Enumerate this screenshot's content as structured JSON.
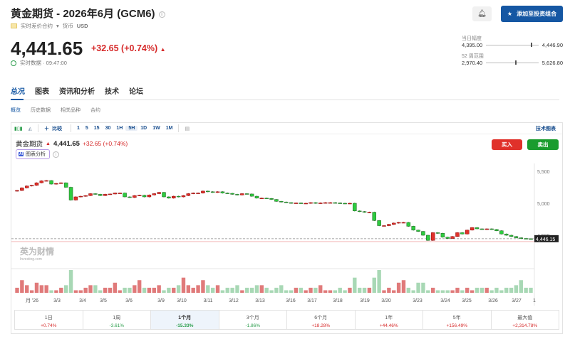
{
  "header": {
    "title": "黄金期货 - 2026年6月 (GCM6)",
    "contract_type": "实时差价合约",
    "currency_label": "货币",
    "currency": "USD",
    "price": "4,441.65",
    "change": "+32.65 (+0.74%)",
    "realtime": "实时数据 · 09:47:00",
    "add_portfolio": "添加至投资组合",
    "day_range": {
      "label": "当日幅度",
      "low": "4,395.00",
      "high": "4,446.90",
      "position": 0.86
    },
    "week52_range": {
      "label": "52 周范围",
      "low": "2,970.40",
      "high": "5,626.80",
      "position": 0.55
    }
  },
  "tabs": [
    {
      "label": "总况",
      "active": true
    },
    {
      "label": "图表"
    },
    {
      "label": "资讯和分析"
    },
    {
      "label": "技术"
    },
    {
      "label": "论坛"
    }
  ],
  "subtabs": [
    {
      "label": "概览",
      "active": true
    },
    {
      "label": "历史数据"
    },
    {
      "label": "相关品种"
    },
    {
      "label": "合约"
    }
  ],
  "toolbar": {
    "compare": "比较",
    "intervals": [
      "1",
      "5",
      "15",
      "30",
      "1H",
      "5H",
      "1D",
      "1W",
      "1M"
    ],
    "selected": "5H",
    "tech_chart": "技术图表"
  },
  "legend": {
    "name": "黄金期货",
    "price": "4,441.65",
    "change": "+32.65 (+0.74%)",
    "ai": "图表分析"
  },
  "trade": {
    "buy": "买入",
    "sell": "卖出"
  },
  "colors": {
    "up": "#e0312a",
    "down": "#2ecc40",
    "accent": "#1557a3"
  },
  "watermark": "英为财情 Investing.com",
  "chart_data": {
    "type": "candlestick",
    "ylim": [
      4100,
      5600
    ],
    "yticks": [
      "5,500",
      "5,000",
      "4,500"
    ],
    "yticks_values": [
      5500,
      5000,
      4500
    ],
    "last_price_label": "4,446.15",
    "last_price": 4446.15,
    "xlabels": [
      "月 '26",
      "3/3",
      "3/4",
      "3/5",
      "3/6",
      "3/9",
      "3/10",
      "3/11",
      "3/12",
      "3/13",
      "3/16",
      "3/17",
      "3/18",
      "3/19",
      "3/20",
      "3/23",
      "3/24",
      "3/25",
      "3/26",
      "3/27",
      "1"
    ],
    "close": [
      5200,
      5240,
      5270,
      5280,
      5320,
      5350,
      5355,
      5300,
      5310,
      5320,
      5250,
      5050,
      5100,
      5110,
      5120,
      5150,
      5140,
      5120,
      5140,
      5145,
      5160,
      5160,
      5100,
      5090,
      5120,
      5125,
      5100,
      5130,
      5150,
      5170,
      5100,
      5080,
      5110,
      5100,
      5120,
      5150,
      5160,
      5160,
      5190,
      5180,
      5170,
      5180,
      5160,
      5155,
      5140,
      5130,
      5150,
      5145,
      5110,
      5080,
      5080,
      5075,
      5060,
      5030,
      5020,
      5010,
      5000,
      5005,
      5000,
      5000,
      5010,
      5000,
      5005,
      5010,
      5010,
      5005,
      5000,
      4995,
      5000,
      4880,
      4870,
      4860,
      4860,
      4730,
      4650,
      4650,
      4670,
      4690,
      4700,
      4700,
      4640,
      4580,
      4560,
      4500,
      4420,
      4540,
      4530,
      4470,
      4450,
      4480,
      4540,
      4520,
      4580,
      4620,
      4600,
      4590,
      4600,
      4590,
      4570,
      4520,
      4500,
      4480,
      4460,
      4450,
      4445,
      4441.65
    ],
    "volume": [
      2,
      5,
      3,
      1,
      4,
      3,
      3,
      1,
      1,
      2,
      3,
      9,
      1,
      1,
      2,
      3,
      3,
      1,
      2,
      2,
      4,
      1,
      2,
      2,
      3,
      5,
      2,
      2,
      2,
      3,
      1,
      2,
      2,
      3,
      6,
      3,
      2,
      3,
      5,
      3,
      2,
      3,
      1,
      2,
      2,
      3,
      1,
      2,
      2,
      3,
      3,
      2,
      1,
      2,
      3,
      1,
      1,
      2,
      2,
      1,
      2,
      2,
      3,
      1,
      1,
      1,
      2,
      1,
      2,
      6,
      2,
      2,
      2,
      6,
      9,
      1,
      2,
      1,
      4,
      5,
      2,
      1,
      4,
      4,
      1,
      2,
      1,
      1,
      1,
      1,
      2,
      1,
      2,
      1,
      2,
      2,
      2,
      1,
      2,
      1,
      2,
      2,
      3,
      5,
      2,
      2
    ]
  },
  "periods": [
    {
      "label": "1日",
      "value": "+0.74%",
      "dir": "up"
    },
    {
      "label": "1周",
      "value": "-3.61%",
      "dir": "dn"
    },
    {
      "label": "1个月",
      "value": "-15.33%",
      "dir": "dn",
      "active": true
    },
    {
      "label": "3个月",
      "value": "-1.86%",
      "dir": "dn"
    },
    {
      "label": "6个月",
      "value": "+18.28%",
      "dir": "up"
    },
    {
      "label": "1年",
      "value": "+44.46%",
      "dir": "up"
    },
    {
      "label": "5年",
      "value": "+156.49%",
      "dir": "up"
    },
    {
      "label": "最大值",
      "value": "+2,314.78%",
      "dir": "up"
    }
  ]
}
